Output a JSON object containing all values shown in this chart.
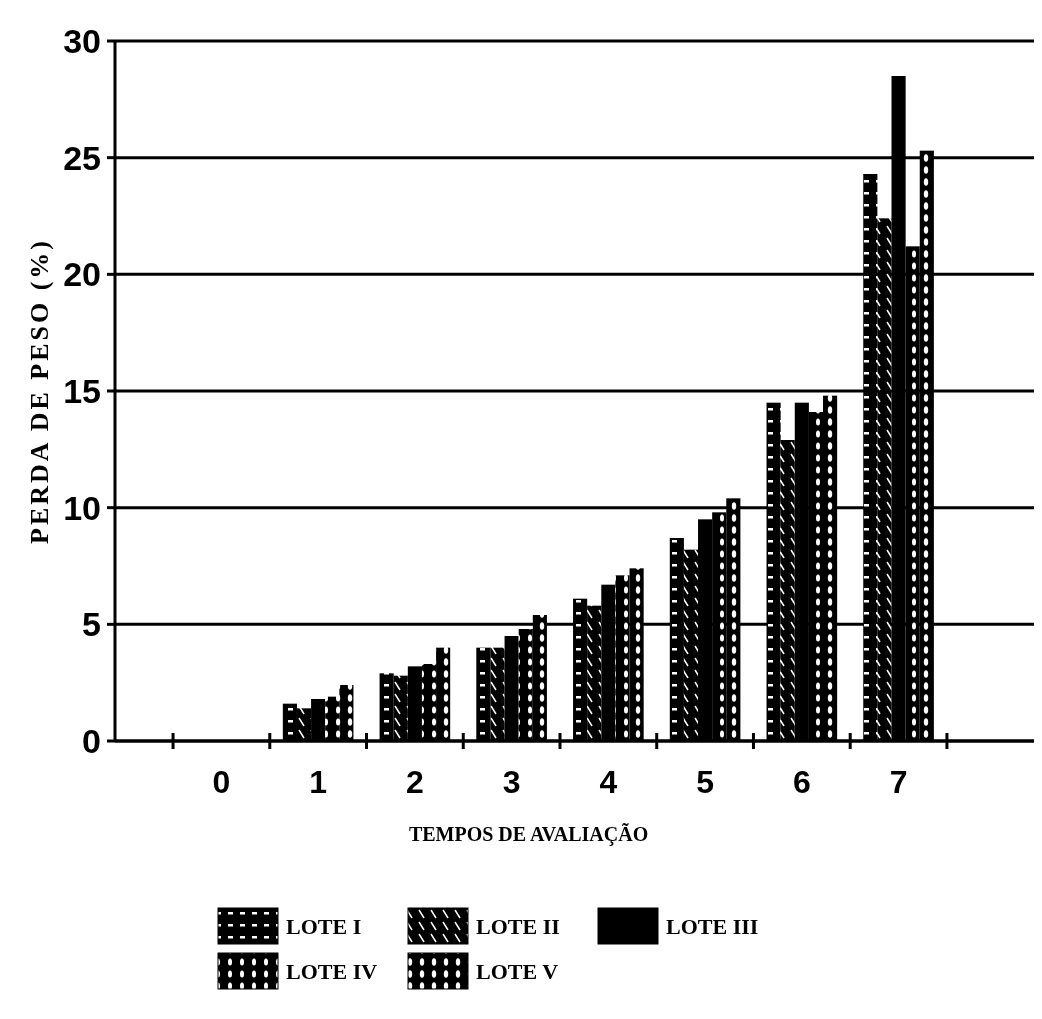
{
  "chart_data": {
    "type": "bar",
    "xlabel": "TEMPOS DE AVALIAÇÃO",
    "ylabel": "PERDA DE PESO (%)",
    "categories": [
      "0",
      "1",
      "2",
      "3",
      "4",
      "5",
      "6",
      "7"
    ],
    "series": [
      {
        "name": "LOTE I",
        "color": "#000000",
        "values": [
          0,
          1.6,
          2.9,
          4.0,
          6.1,
          8.7,
          14.5,
          24.3
        ]
      },
      {
        "name": "LOTE II",
        "color": "#000000",
        "values": [
          0,
          1.4,
          2.8,
          4.0,
          5.8,
          8.2,
          12.9,
          22.4
        ]
      },
      {
        "name": "LOTE III",
        "color": "#000000",
        "values": [
          0,
          1.8,
          3.2,
          4.5,
          6.7,
          9.5,
          14.5,
          28.5
        ]
      },
      {
        "name": "LOTE IV",
        "color": "#000000",
        "values": [
          0,
          1.9,
          3.3,
          4.8,
          7.1,
          9.8,
          14.1,
          21.2
        ]
      },
      {
        "name": "LOTE V",
        "color": "#000000",
        "values": [
          0,
          2.4,
          4.0,
          5.4,
          7.4,
          10.4,
          14.8,
          25.3
        ]
      }
    ],
    "ylim": [
      0,
      30
    ],
    "yticks": [
      0,
      5,
      10,
      15,
      20,
      25,
      30
    ],
    "grid": "y",
    "legend": "bottom"
  }
}
